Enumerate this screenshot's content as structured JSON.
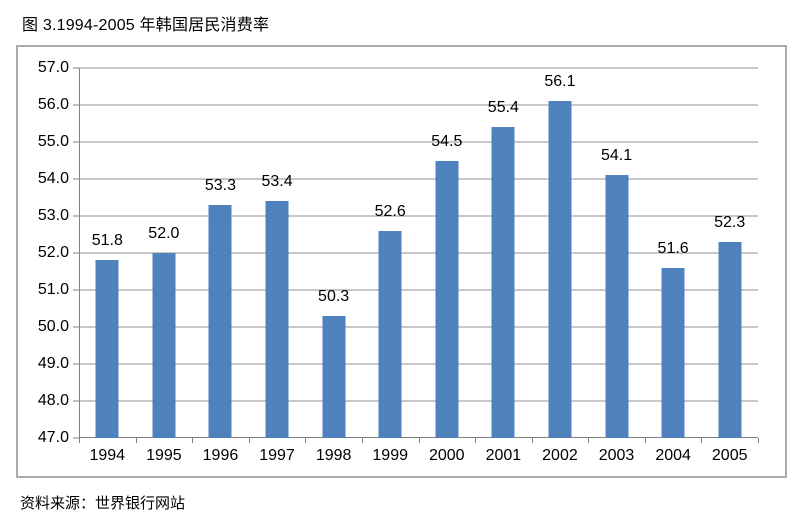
{
  "title": "图 3.1994-2005 年韩国居民消费率",
  "source": "资料来源：世界银行网站",
  "colors": {
    "bar": "#4F81BD",
    "gridline": "#919191",
    "axis": "#808080",
    "frame": "#ABABAB",
    "text": "#000000",
    "background": "#FFFFFF"
  },
  "chart_data": {
    "type": "bar",
    "title": "图 3.1994-2005 年韩国居民消费率",
    "categories": [
      "1994",
      "1995",
      "1996",
      "1997",
      "1998",
      "1999",
      "2000",
      "2001",
      "2002",
      "2003",
      "2004",
      "2005"
    ],
    "values": [
      51.8,
      52.0,
      53.3,
      53.4,
      50.3,
      52.6,
      54.5,
      55.4,
      56.1,
      54.1,
      51.6,
      52.3
    ],
    "xlabel": "",
    "ylabel": "",
    "ylim": [
      47.0,
      57.0
    ],
    "ytick_step": 1.0,
    "ytick_decimals": 1,
    "data_labels": true,
    "data_label_decimals": 1,
    "grid": true,
    "legend": false,
    "source": "资料来源：世界银行网站"
  }
}
